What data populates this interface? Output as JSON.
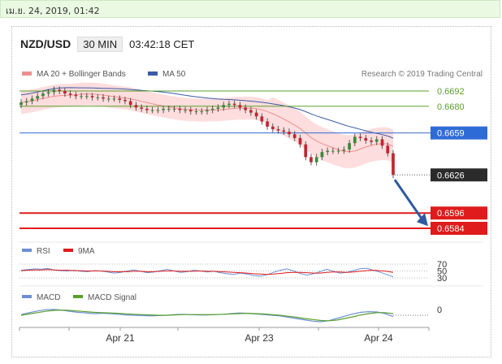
{
  "topbar": {
    "timestamp": "เม.ย. 24, 2019, 01:42"
  },
  "header": {
    "pair": "NZD/USD",
    "timeframe": "30 MIN",
    "time": "03:42:18 CET"
  },
  "legend": {
    "bb_label": "MA 20 + Bollinger Bands",
    "ma50_label": "MA 50",
    "research": "Research © 2019 Trading Central"
  },
  "rsi_legend": {
    "rsi": "RSI",
    "ma": "9MA"
  },
  "macd_legend": {
    "macd": "MACD",
    "signal": "MACD Signal"
  },
  "colors": {
    "up": "#3a8a3a",
    "down": "#c0262f",
    "level_green": "#5aa02c",
    "level_blue": "#2f6bd7",
    "level_red": "#e01b1b",
    "price_dark": "#2b2b2b",
    "bb_fill": "#fdd5d5",
    "ma50": "#3b5ba8",
    "rsi": "#6a8fd6",
    "macd_signal": "#5aa02c"
  },
  "chart_data": [
    {
      "type": "line",
      "name": "price",
      "x_tick_labels": [
        "Apr 21",
        "Apr 23",
        "Apr 24"
      ],
      "levels": [
        {
          "value": 0.6692,
          "label": "0.6692",
          "style": "green-line"
        },
        {
          "value": 0.668,
          "label": "0.6680",
          "style": "green-line"
        },
        {
          "value": 0.6659,
          "label": "0.6659",
          "style": "blue-line"
        },
        {
          "value": 0.6626,
          "label": "0.6626",
          "style": "current-price"
        },
        {
          "value": 0.6596,
          "label": "0.6596",
          "style": "red-line"
        },
        {
          "value": 0.6584,
          "label": "0.6584",
          "style": "red-line"
        }
      ],
      "series": [
        {
          "name": "MA 20 + Bollinger Bands"
        },
        {
          "name": "MA 50"
        }
      ],
      "close": [
        0.6683,
        0.6684,
        0.6686,
        0.6688,
        0.669,
        0.6691,
        0.6693,
        0.6692,
        0.669,
        0.6689,
        0.6688,
        0.6688,
        0.6688,
        0.6687,
        0.6687,
        0.6686,
        0.6686,
        0.6686,
        0.6685,
        0.6684,
        0.6681,
        0.6679,
        0.6678,
        0.6677,
        0.6677,
        0.6677,
        0.6678,
        0.6678,
        0.6678,
        0.6677,
        0.6677,
        0.6676,
        0.6676,
        0.6676,
        0.6677,
        0.6678,
        0.6679,
        0.6681,
        0.6682,
        0.6681,
        0.6679,
        0.6677,
        0.6675,
        0.6672,
        0.6668,
        0.6664,
        0.6662,
        0.6661,
        0.666,
        0.6658,
        0.6655,
        0.665,
        0.664,
        0.6636,
        0.664,
        0.6644,
        0.6645,
        0.6645,
        0.6645,
        0.6646,
        0.6651,
        0.6656,
        0.6655,
        0.6653,
        0.6652,
        0.6654,
        0.6649,
        0.6643,
        0.6626
      ],
      "arrow": {
        "from": 0.6626,
        "to": 0.6587
      }
    },
    {
      "type": "line",
      "name": "RSI",
      "yticks": [
        "70",
        "50",
        "30"
      ],
      "series": [
        {
          "name": "RSI",
          "values": [
            52,
            54,
            56,
            55,
            57,
            53,
            51,
            50,
            52,
            49,
            48,
            51,
            50,
            47,
            44,
            46,
            50,
            53,
            49,
            45,
            47,
            51,
            55,
            50,
            46,
            48,
            52,
            50,
            47,
            49,
            45,
            42,
            40,
            44,
            41,
            37,
            35,
            39,
            46,
            52,
            56,
            50,
            43,
            38,
            42,
            48,
            55,
            49,
            44,
            46,
            51,
            56,
            58,
            52,
            47,
            40,
            33
          ]
        },
        {
          "name": "9MA",
          "values": [
            51,
            52,
            53,
            53,
            54,
            53,
            52,
            52,
            51,
            51,
            50,
            50,
            50,
            49,
            48,
            48,
            48,
            49,
            49,
            48,
            48,
            49,
            50,
            50,
            49,
            49,
            49,
            50,
            49,
            49,
            48,
            47,
            46,
            45,
            44,
            42,
            41,
            40,
            41,
            43,
            45,
            46,
            46,
            45,
            44,
            44,
            46,
            47,
            47,
            46,
            47,
            49,
            51,
            52,
            51,
            49,
            46
          ]
        }
      ]
    },
    {
      "type": "line",
      "name": "MACD",
      "yticks": [
        "0"
      ],
      "series": [
        {
          "name": "MACD",
          "values": [
            0.2,
            0.8,
            1.3,
            1.7,
            1.8,
            1.6,
            1.2,
            0.9,
            0.7,
            0.5,
            0.6,
            0.5,
            0.3,
            0.1,
            0.0,
            -0.1,
            -0.2,
            -0.1,
            0.0,
            0.2,
            0.3,
            0.2,
            0.1,
            0.1,
            0.2,
            0.3,
            0.5,
            0.7,
            0.6,
            0.4,
            0.2,
            0.0,
            -0.2,
            -0.6,
            -1.0,
            -1.4,
            -1.8,
            -2.0,
            -1.7,
            -1.0,
            -0.3,
            0.4,
            0.9,
            1.1,
            1.0,
            0.5,
            -0.4
          ]
        },
        {
          "name": "MACD Signal",
          "values": [
            0.0,
            0.4,
            0.8,
            1.2,
            1.5,
            1.6,
            1.5,
            1.3,
            1.1,
            0.9,
            0.8,
            0.7,
            0.6,
            0.4,
            0.3,
            0.2,
            0.1,
            0.0,
            0.0,
            0.1,
            0.2,
            0.2,
            0.2,
            0.2,
            0.2,
            0.3,
            0.4,
            0.5,
            0.6,
            0.5,
            0.4,
            0.2,
            0.0,
            -0.3,
            -0.6,
            -1.0,
            -1.3,
            -1.6,
            -1.7,
            -1.5,
            -1.0,
            -0.5,
            0.1,
            0.5,
            0.8,
            0.8,
            0.5
          ]
        }
      ]
    }
  ]
}
